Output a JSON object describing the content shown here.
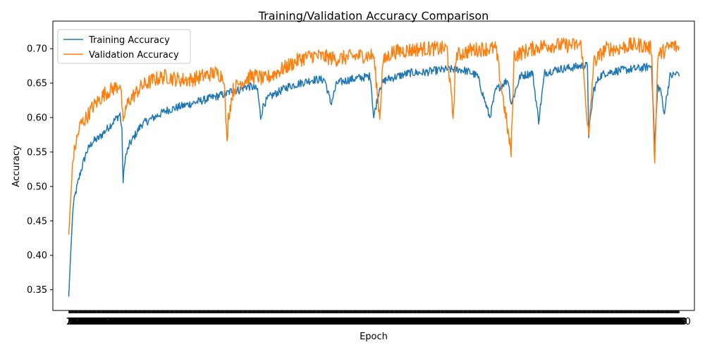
{
  "chart_data": {
    "type": "line",
    "title": "Training/Validation Accuracy Comparison",
    "xlabel": "Epoch",
    "ylabel": "Accuracy",
    "ylim": [
      0.32,
      0.74
    ],
    "yticks": [
      0.35,
      0.4,
      0.45,
      0.5,
      0.55,
      0.6,
      0.65,
      0.7
    ],
    "xlim": [
      -25,
      1025
    ],
    "num_epochs": 1000,
    "legend_position": "top-left",
    "grid": false,
    "series": [
      {
        "name": "Training Accuracy",
        "color": "#1f77b4",
        "points": [
          [
            1,
            0.34
          ],
          [
            4,
            0.4
          ],
          [
            8,
            0.47
          ],
          [
            12,
            0.49
          ],
          [
            16,
            0.505
          ],
          [
            20,
            0.52
          ],
          [
            30,
            0.55
          ],
          [
            40,
            0.565
          ],
          [
            50,
            0.57
          ],
          [
            60,
            0.58
          ],
          [
            70,
            0.59
          ],
          [
            80,
            0.6
          ],
          [
            85,
            0.605
          ],
          [
            88,
            0.58
          ],
          [
            90,
            0.505
          ],
          [
            93,
            0.54
          ],
          [
            100,
            0.56
          ],
          [
            110,
            0.575
          ],
          [
            120,
            0.59
          ],
          [
            140,
            0.6
          ],
          [
            160,
            0.61
          ],
          [
            180,
            0.615
          ],
          [
            200,
            0.62
          ],
          [
            220,
            0.625
          ],
          [
            240,
            0.63
          ],
          [
            260,
            0.635
          ],
          [
            270,
            0.64
          ],
          [
            280,
            0.64
          ],
          [
            290,
            0.645
          ],
          [
            300,
            0.645
          ],
          [
            310,
            0.64
          ],
          [
            315,
            0.6
          ],
          [
            320,
            0.62
          ],
          [
            330,
            0.63
          ],
          [
            340,
            0.635
          ],
          [
            360,
            0.645
          ],
          [
            380,
            0.65
          ],
          [
            400,
            0.655
          ],
          [
            420,
            0.655
          ],
          [
            430,
            0.62
          ],
          [
            440,
            0.65
          ],
          [
            460,
            0.655
          ],
          [
            480,
            0.658
          ],
          [
            495,
            0.66
          ],
          [
            500,
            0.6
          ],
          [
            510,
            0.645
          ],
          [
            520,
            0.655
          ],
          [
            540,
            0.66
          ],
          [
            560,
            0.665
          ],
          [
            580,
            0.665
          ],
          [
            600,
            0.668
          ],
          [
            620,
            0.67
          ],
          [
            640,
            0.67
          ],
          [
            650,
            0.668
          ],
          [
            660,
            0.665
          ],
          [
            670,
            0.66
          ],
          [
            690,
            0.6
          ],
          [
            700,
            0.64
          ],
          [
            720,
            0.655
          ],
          [
            725,
            0.62
          ],
          [
            740,
            0.66
          ],
          [
            760,
            0.665
          ],
          [
            770,
            0.595
          ],
          [
            780,
            0.665
          ],
          [
            800,
            0.67
          ],
          [
            820,
            0.672
          ],
          [
            840,
            0.675
          ],
          [
            850,
            0.675
          ],
          [
            852,
            0.575
          ],
          [
            860,
            0.64
          ],
          [
            870,
            0.66
          ],
          [
            880,
            0.665
          ],
          [
            900,
            0.668
          ],
          [
            920,
            0.67
          ],
          [
            940,
            0.672
          ],
          [
            955,
            0.675
          ],
          [
            960,
            0.56
          ],
          [
            965,
            0.645
          ],
          [
            970,
            0.64
          ],
          [
            975,
            0.605
          ],
          [
            985,
            0.66
          ],
          [
            1000,
            0.665
          ]
        ]
      },
      {
        "name": "Validation Accuracy",
        "color": "#ff7f0e",
        "points": [
          [
            1,
            0.43
          ],
          [
            4,
            0.48
          ],
          [
            8,
            0.54
          ],
          [
            12,
            0.56
          ],
          [
            16,
            0.575
          ],
          [
            20,
            0.59
          ],
          [
            30,
            0.6
          ],
          [
            40,
            0.615
          ],
          [
            50,
            0.625
          ],
          [
            60,
            0.635
          ],
          [
            70,
            0.64
          ],
          [
            80,
            0.645
          ],
          [
            85,
            0.65
          ],
          [
            88,
            0.62
          ],
          [
            90,
            0.585
          ],
          [
            93,
            0.61
          ],
          [
            100,
            0.625
          ],
          [
            120,
            0.645
          ],
          [
            140,
            0.655
          ],
          [
            160,
            0.66
          ],
          [
            180,
            0.655
          ],
          [
            200,
            0.655
          ],
          [
            220,
            0.66
          ],
          [
            240,
            0.665
          ],
          [
            255,
            0.66
          ],
          [
            260,
            0.56
          ],
          [
            262,
            0.6
          ],
          [
            270,
            0.64
          ],
          [
            280,
            0.65
          ],
          [
            290,
            0.655
          ],
          [
            300,
            0.66
          ],
          [
            310,
            0.66
          ],
          [
            320,
            0.655
          ],
          [
            330,
            0.66
          ],
          [
            340,
            0.665
          ],
          [
            360,
            0.675
          ],
          [
            380,
            0.685
          ],
          [
            400,
            0.69
          ],
          [
            420,
            0.688
          ],
          [
            440,
            0.685
          ],
          [
            460,
            0.688
          ],
          [
            480,
            0.69
          ],
          [
            500,
            0.69
          ],
          [
            510,
            0.6
          ],
          [
            515,
            0.68
          ],
          [
            530,
            0.695
          ],
          [
            560,
            0.698
          ],
          [
            580,
            0.7
          ],
          [
            600,
            0.7
          ],
          [
            620,
            0.7
          ],
          [
            630,
            0.6
          ],
          [
            635,
            0.69
          ],
          [
            660,
            0.698
          ],
          [
            680,
            0.7
          ],
          [
            700,
            0.7
          ],
          [
            725,
            0.548
          ],
          [
            730,
            0.69
          ],
          [
            760,
            0.7
          ],
          [
            780,
            0.705
          ],
          [
            800,
            0.705
          ],
          [
            820,
            0.705
          ],
          [
            840,
            0.705
          ],
          [
            852,
            0.57
          ],
          [
            860,
            0.68
          ],
          [
            880,
            0.7
          ],
          [
            900,
            0.7
          ],
          [
            920,
            0.705
          ],
          [
            940,
            0.705
          ],
          [
            955,
            0.7
          ],
          [
            960,
            0.53
          ],
          [
            965,
            0.69
          ],
          [
            980,
            0.7
          ],
          [
            990,
            0.705
          ],
          [
            1000,
            0.7
          ]
        ]
      }
    ]
  }
}
